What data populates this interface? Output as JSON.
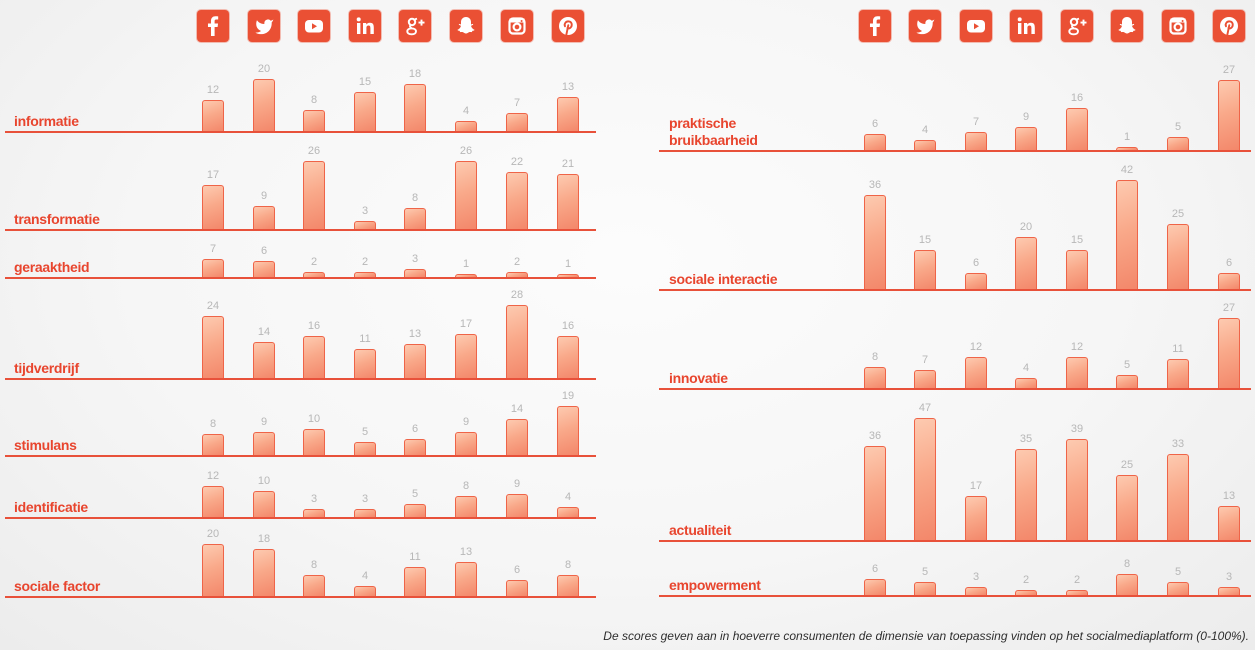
{
  "icons": [
    "facebook-icon",
    "twitter-icon",
    "youtube-icon",
    "linkedin-icon",
    "google-plus-icon",
    "snapchat-icon",
    "instagram-icon",
    "pinterest-icon"
  ],
  "colors": {
    "accent": "#ea5034",
    "label": "#e8452e",
    "bar_top": "#fdcab0",
    "bar_bottom": "#f3876a",
    "value_text": "#b7b7b7"
  },
  "chart_data": [
    {
      "type": "bar",
      "panel": "left",
      "category_icons": [
        "facebook-icon",
        "twitter-icon",
        "youtube-icon",
        "linkedin-icon",
        "google-plus-icon",
        "snapchat-icon",
        "instagram-icon",
        "pinterest-icon"
      ],
      "value_range": [
        0,
        100
      ],
      "series": [
        {
          "name": "informatie",
          "values": [
            12,
            20,
            8,
            15,
            18,
            4,
            7,
            13
          ]
        },
        {
          "name": "transformatie",
          "values": [
            17,
            9,
            26,
            3,
            8,
            26,
            22,
            21
          ]
        },
        {
          "name": "geraaktheid",
          "values": [
            7,
            6,
            2,
            2,
            3,
            1,
            2,
            1
          ]
        },
        {
          "name": "tijdverdrijf",
          "values": [
            24,
            14,
            16,
            11,
            13,
            17,
            28,
            16
          ]
        },
        {
          "name": "stimulans",
          "values": [
            8,
            9,
            10,
            5,
            6,
            9,
            14,
            19
          ]
        },
        {
          "name": "identificatie",
          "values": [
            12,
            10,
            3,
            3,
            5,
            8,
            9,
            4
          ]
        },
        {
          "name": "sociale factor",
          "values": [
            20,
            18,
            8,
            4,
            11,
            13,
            6,
            8
          ]
        }
      ]
    },
    {
      "type": "bar",
      "panel": "right",
      "category_icons": [
        "facebook-icon",
        "twitter-icon",
        "youtube-icon",
        "linkedin-icon",
        "google-plus-icon",
        "snapchat-icon",
        "instagram-icon",
        "pinterest-icon"
      ],
      "value_range": [
        0,
        100
      ],
      "series": [
        {
          "name": "praktische bruikbaarheid",
          "values": [
            6,
            4,
            7,
            9,
            16,
            1,
            5,
            27
          ]
        },
        {
          "name": "sociale interactie",
          "values": [
            36,
            15,
            6,
            20,
            15,
            42,
            25,
            6
          ]
        },
        {
          "name": "innovatie",
          "values": [
            8,
            7,
            12,
            4,
            12,
            5,
            11,
            27
          ]
        },
        {
          "name": "actualiteit",
          "values": [
            36,
            47,
            17,
            35,
            39,
            25,
            33,
            13
          ]
        },
        {
          "name": "empowerment",
          "values": [
            6,
            5,
            3,
            2,
            2,
            8,
            5,
            3
          ]
        }
      ]
    }
  ],
  "footnote": "De scores geven aan in hoeverre consumenten de dimensie van toepassing vinden op het socialmediaplatform (0-100%)."
}
